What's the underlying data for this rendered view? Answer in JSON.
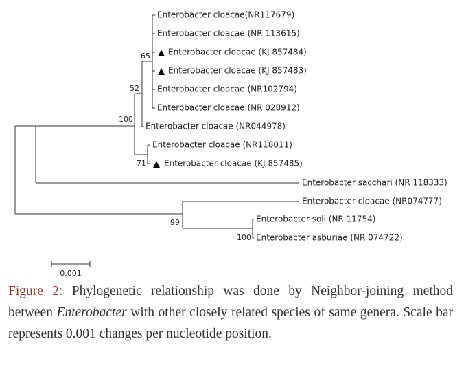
{
  "tree": {
    "leaves": [
      "Enterobacter cloacae(NR117679)",
      "Enterobacter cloacae (NR 113615)",
      "Enterobacter cloacae (KJ 857484)",
      "Enterobacter cloacae (KJ 857483)",
      "Enterobacter cloacae (NR102794)",
      "Enterobacter cloacae (NR 028912)",
      "Enterobacter cloacae (NR044978)",
      "Enterobacter cloacae (NR118011)",
      "Enterobacter cloacae (KJ 857485)",
      "Enterobacter sacchari (NR 118333)",
      "Enterobacter cloacae (NR074777)",
      "Enterobacter soli (NR 11754)",
      "Enterobacter asburiae (NR 074722)"
    ],
    "bootstrap": [
      "65",
      "52",
      "100",
      "71",
      "99",
      "100"
    ],
    "scale_bar": "0.001"
  },
  "caption": {
    "label": "Figure 2:",
    "text_before": "Phylogenetic relationship was done by Neighbor-joining method between",
    "italic": "Enterobacter",
    "text_after": "with other closely related species of same genera. Scale bar represents 0.001 changes per nucleotide position."
  }
}
